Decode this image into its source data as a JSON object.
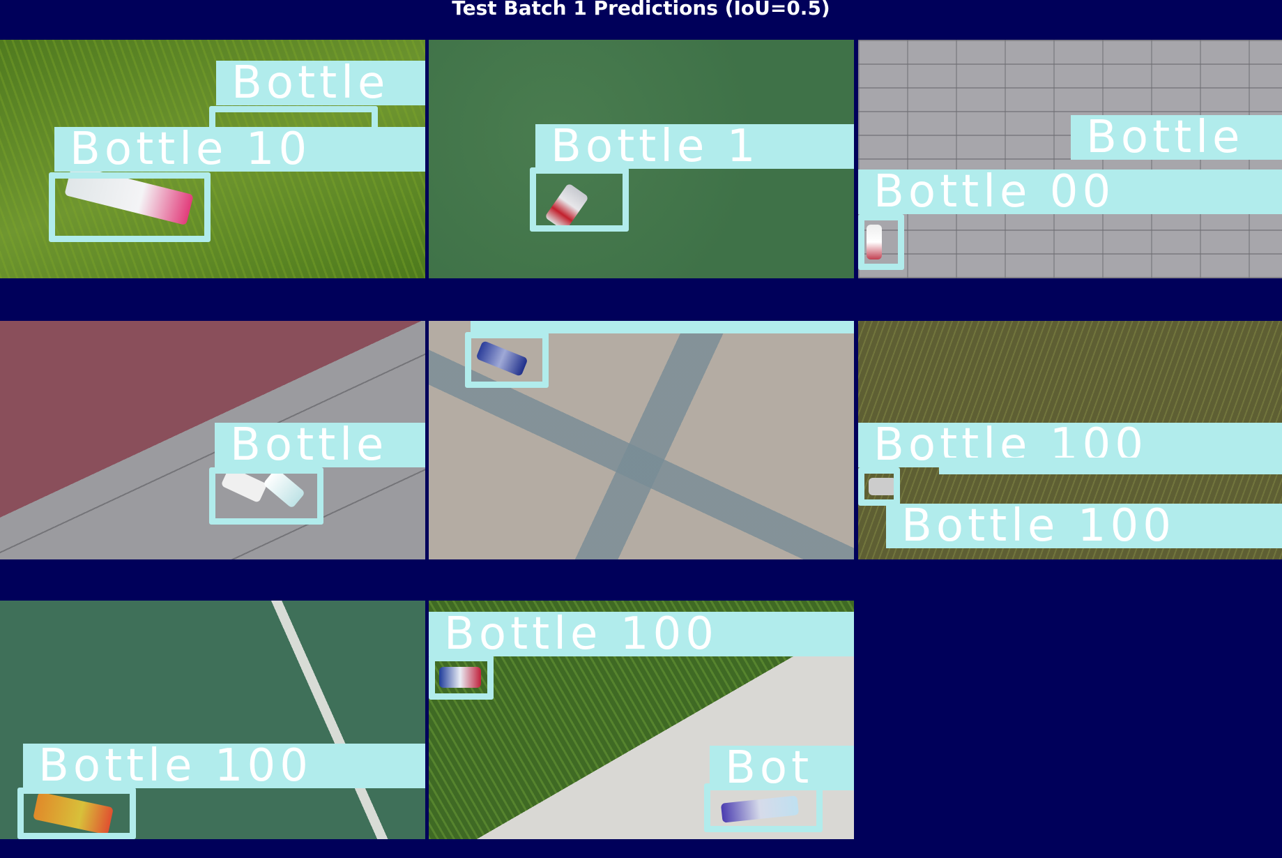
{
  "title": "Test Batch 1 Predictions (IoU=0.5)",
  "colors": {
    "background": "#00005a",
    "box": "#b1ecec",
    "label_text": "#ffffff"
  },
  "tiles": [
    {
      "scene": "green grass lawn",
      "labels": [
        "Bottle",
        "Bottle 10"
      ]
    },
    {
      "scene": "green artificial turf",
      "labels": [
        "Bottle 1"
      ]
    },
    {
      "scene": "grey brick pavement",
      "labels": [
        "Bottle",
        "Bottle 00"
      ]
    },
    {
      "scene": "grey and maroon paving tiles",
      "labels": [
        "Bottle"
      ]
    },
    {
      "scene": "beige paving with grey stripes",
      "labels": []
    },
    {
      "scene": "dry brown-green grass",
      "labels": [
        "Bottle 100",
        "Bottle 100"
      ]
    },
    {
      "scene": "green sports court with white line",
      "labels": [
        "Bottle 100"
      ]
    },
    {
      "scene": "grass and concrete edge",
      "labels": [
        "Bottle 100",
        "Bot"
      ]
    }
  ]
}
